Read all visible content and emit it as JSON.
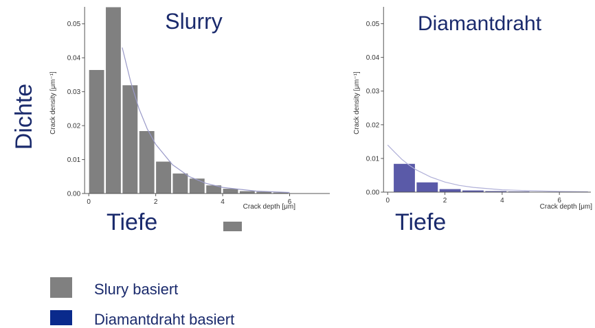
{
  "slide": {
    "left_label": "Dichte",
    "tiefe_left": "Tiefe",
    "tiefe_right": "Tiefe"
  },
  "legend": [
    {
      "label": "Slury basiert",
      "color": "#808080"
    },
    {
      "label": "Diamantdraht basiert",
      "color": "#0a2a8c"
    }
  ],
  "chart_data": [
    {
      "type": "bar",
      "title": "Slurry",
      "xlabel": "Crack depth [μm]",
      "ylabel": "Crack density [μm⁻¹]",
      "xlim": [
        -0.25,
        7.2
      ],
      "ylim": [
        0,
        0.055
      ],
      "x_ticks": [
        "0",
        "2",
        "4",
        "6"
      ],
      "y_ticks": [
        "0.00",
        "0.01",
        "0.02",
        "0.03",
        "0.04",
        "0.05"
      ],
      "bin_width": 0.5,
      "bin_edges_start": [
        0,
        0.5,
        1,
        1.5,
        2,
        2.5,
        3,
        3.5,
        4,
        4.5,
        5,
        5.5,
        6
      ],
      "values": [
        0.0365,
        0.055,
        0.032,
        0.0185,
        0.0095,
        0.006,
        0.0045,
        0.0025,
        0.0015,
        0.0008,
        0.0006,
        0.0004,
        0.0002
      ],
      "fit_curve": {
        "x": [
          1.0,
          1.25,
          1.5,
          1.75,
          2.0,
          2.5,
          3.0,
          3.5,
          4.0,
          5.0,
          6.0
        ],
        "y": [
          0.043,
          0.033,
          0.025,
          0.019,
          0.0145,
          0.0085,
          0.005,
          0.003,
          0.0018,
          0.0007,
          0.0003
        ]
      },
      "bar_color": "#808080",
      "fit_color": "#9a9ac8"
    },
    {
      "type": "bar",
      "title": "Diamantdraht",
      "xlabel": "Crack depth [μm]",
      "ylabel": "Crack density [μm⁻¹]",
      "xlim": [
        -0.15,
        7.1
      ],
      "ylim": [
        0,
        0.055
      ],
      "x_ticks": [
        "0",
        "2",
        "4",
        "6"
      ],
      "y_ticks": [
        "0.00",
        "0.01",
        "0.02",
        "0.03",
        "0.04",
        "0.05"
      ],
      "bin_width": 0.8,
      "bin_edges_start": [
        0.2,
        1.0,
        1.8,
        2.6,
        3.4,
        4.2,
        5.0,
        5.8
      ],
      "values": [
        0.0085,
        0.003,
        0.001,
        0.0006,
        0.0004,
        0.0003,
        0.0002,
        0.0001
      ],
      "fit_curve": {
        "x": [
          0.0,
          0.25,
          0.5,
          0.75,
          1.0,
          1.5,
          2.0,
          2.5,
          3.0,
          4.0,
          5.0,
          6.0,
          7.0
        ],
        "y": [
          0.014,
          0.0118,
          0.0097,
          0.008,
          0.0066,
          0.0045,
          0.003,
          0.002,
          0.0014,
          0.0007,
          0.0004,
          0.0002,
          0.0001
        ]
      },
      "bar_color": "#5a5aa8",
      "fit_color": "#b0b0d8"
    }
  ]
}
